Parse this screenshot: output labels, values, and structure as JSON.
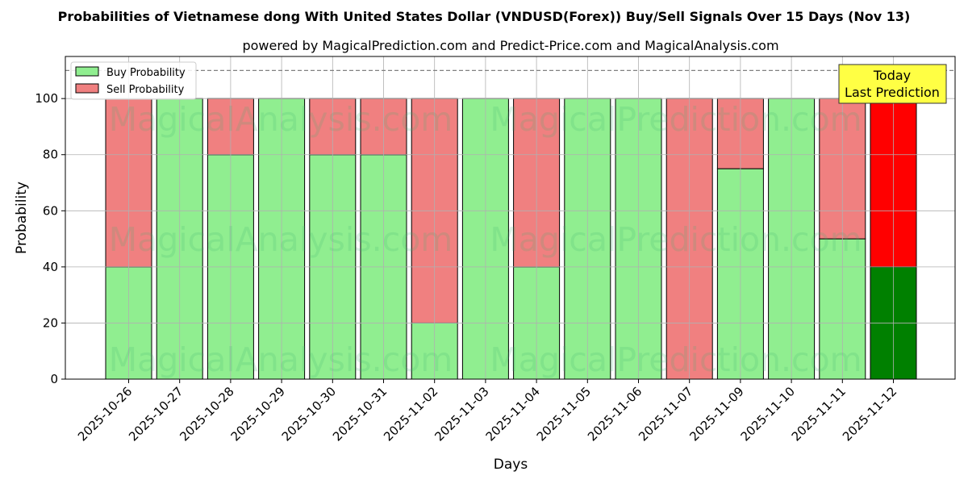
{
  "chart_data": {
    "type": "bar",
    "stacked": true,
    "title": "Probabilities of Vietnamese dong With United States Dollar (VNDUSD(Forex)) Buy/Sell Signals Over 15 Days (Nov 13)",
    "subtitle": "powered by MagicalPrediction.com and Predict-Price.com and MagicalAnalysis.com",
    "xlabel": "Days",
    "ylabel": "Probability",
    "ylim": [
      0,
      115
    ],
    "yticks": [
      0,
      20,
      40,
      60,
      80,
      100
    ],
    "reference_line": 110,
    "grid": true,
    "legend_position": "top-left",
    "categories": [
      "2025-10-26",
      "2025-10-27",
      "2025-10-28",
      "2025-10-29",
      "2025-10-30",
      "2025-10-31",
      "2025-11-02",
      "2025-11-03",
      "2025-11-04",
      "2025-11-05",
      "2025-11-06",
      "2025-11-07",
      "2025-11-09",
      "2025-11-10",
      "2025-11-11",
      "2025-11-12"
    ],
    "series": [
      {
        "name": "Buy Probability",
        "color": "#90ee90",
        "values": [
          40,
          100,
          80,
          100,
          80,
          80,
          20,
          100,
          40,
          100,
          100,
          0,
          75,
          100,
          50,
          40
        ]
      },
      {
        "name": "Sell Probability",
        "color": "#f08080",
        "values": [
          60,
          0,
          20,
          0,
          20,
          20,
          80,
          0,
          60,
          0,
          0,
          100,
          25,
          0,
          50,
          60
        ]
      }
    ],
    "highlight": {
      "index": 15,
      "buy_color": "#008000",
      "sell_color": "#ff0000"
    },
    "annotation": {
      "lines": [
        "Today",
        "Last Prediction"
      ],
      "background": "#ffff44"
    },
    "watermarks": [
      "MagicalAnalysis.com",
      "MagicalPrediction.com"
    ]
  }
}
